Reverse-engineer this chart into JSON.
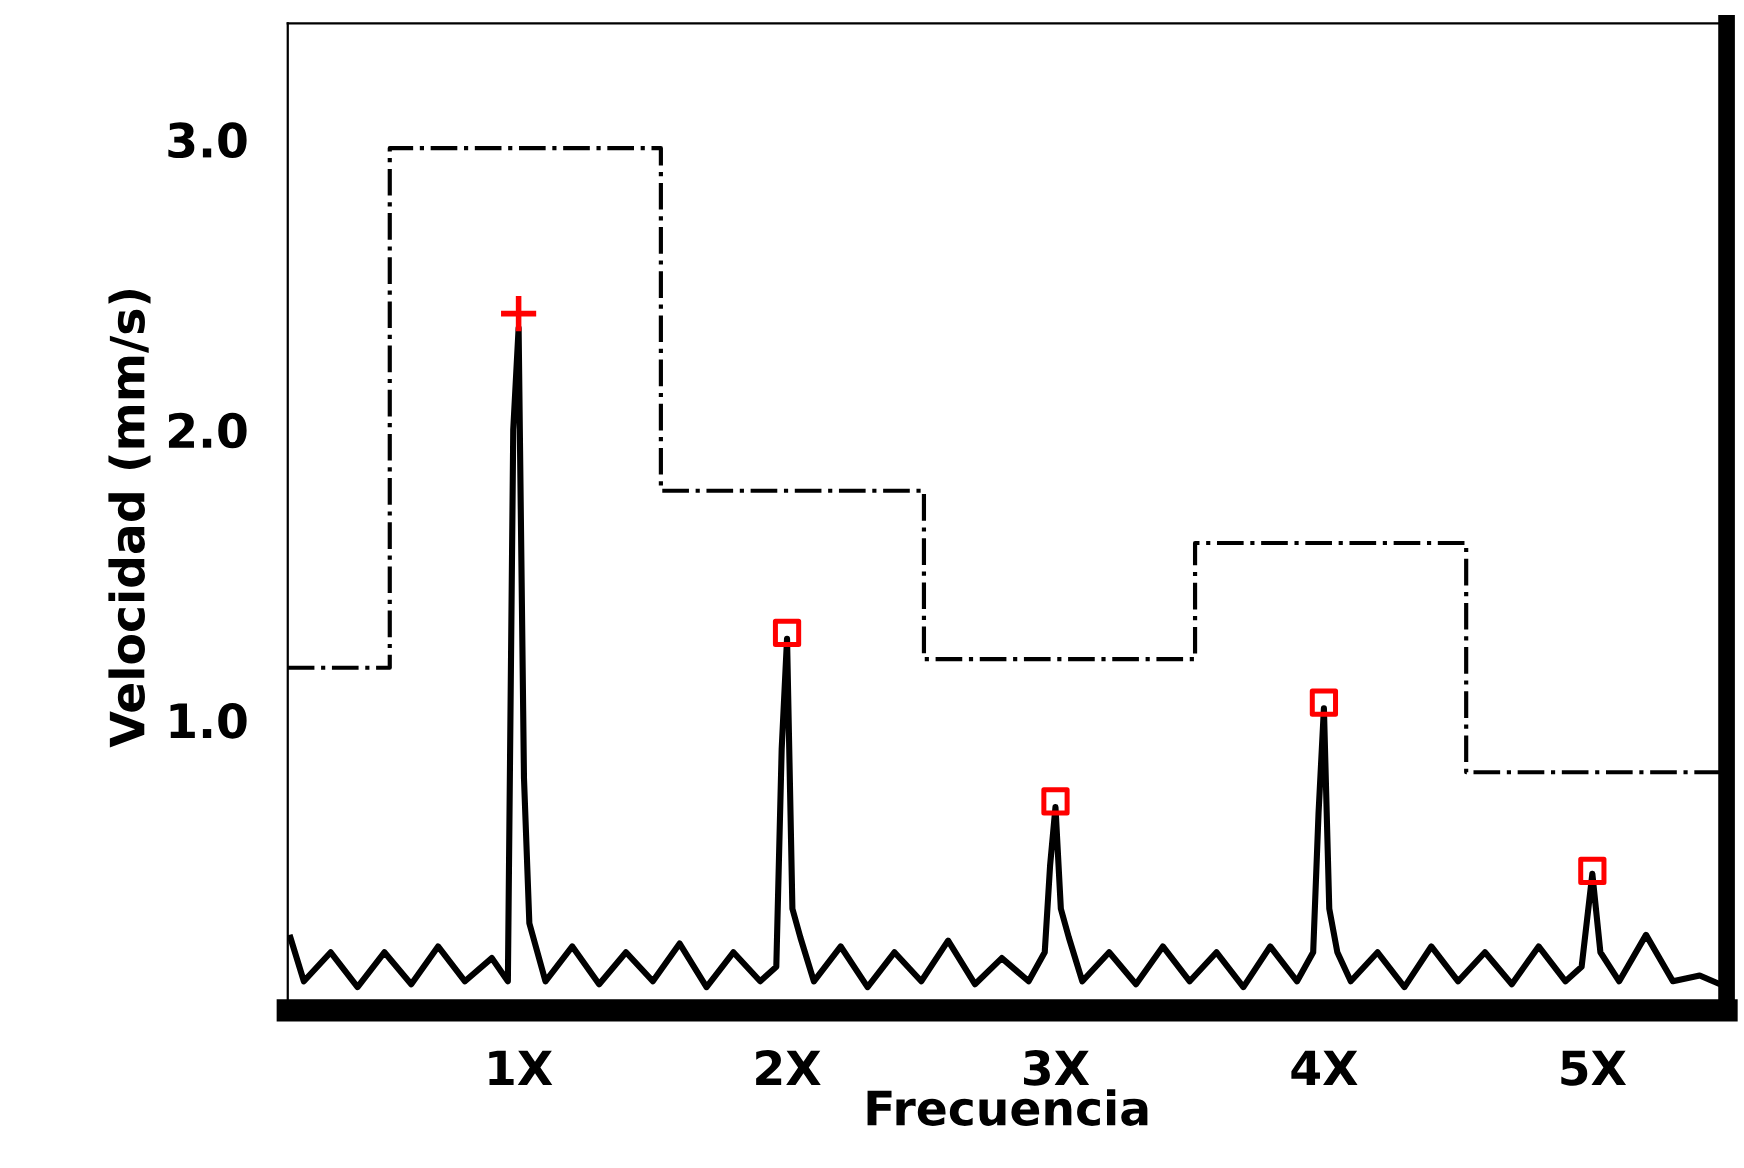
{
  "chart_data": {
    "type": "line",
    "xlabel": "Frecuencia",
    "ylabel": "Velocidad (mm/s)",
    "xlim": [
      0.14,
      5.5
    ],
    "xticks": [
      {
        "value": 1,
        "label": "1X"
      },
      {
        "value": 2,
        "label": "2X"
      },
      {
        "value": 3,
        "label": "3X"
      },
      {
        "value": 4,
        "label": "4X"
      },
      {
        "value": 5,
        "label": "5X"
      }
    ],
    "ylim": [
      0,
      3.4
    ],
    "yticks": [
      {
        "value": 1,
        "label": "1.0"
      },
      {
        "value": 2,
        "label": "2.0"
      },
      {
        "value": 3,
        "label": "3.0"
      }
    ],
    "grid": false,
    "legend": false,
    "series": [
      {
        "color": "#000000",
        "line_style": "solid",
        "marker": "none",
        "x": [
          0.15,
          0.2,
          0.3,
          0.4,
          0.5,
          0.6,
          0.7,
          0.8,
          0.9,
          0.96,
          0.98,
          1.0,
          1.02,
          1.04,
          1.1,
          1.2,
          1.3,
          1.4,
          1.5,
          1.6,
          1.7,
          1.8,
          1.9,
          1.96,
          1.98,
          2.0,
          2.02,
          2.05,
          2.1,
          2.2,
          2.3,
          2.4,
          2.5,
          2.6,
          2.7,
          2.8,
          2.9,
          2.96,
          2.98,
          3.0,
          3.02,
          3.05,
          3.1,
          3.2,
          3.3,
          3.4,
          3.5,
          3.6,
          3.7,
          3.8,
          3.9,
          3.96,
          3.98,
          4.0,
          4.02,
          4.05,
          4.1,
          4.2,
          4.3,
          4.4,
          4.5,
          4.6,
          4.7,
          4.8,
          4.9,
          4.96,
          5.0,
          5.03,
          5.1,
          5.2,
          5.3,
          5.4,
          5.5
        ],
        "values": [
          0.25,
          0.1,
          0.2,
          0.08,
          0.2,
          0.09,
          0.22,
          0.1,
          0.18,
          0.1,
          2.0,
          2.35,
          0.8,
          0.3,
          0.1,
          0.22,
          0.09,
          0.2,
          0.1,
          0.23,
          0.08,
          0.2,
          0.1,
          0.15,
          0.9,
          1.28,
          0.35,
          0.25,
          0.1,
          0.22,
          0.08,
          0.2,
          0.1,
          0.24,
          0.09,
          0.18,
          0.1,
          0.2,
          0.5,
          0.7,
          0.35,
          0.25,
          0.1,
          0.2,
          0.09,
          0.22,
          0.1,
          0.2,
          0.08,
          0.22,
          0.1,
          0.2,
          0.68,
          1.04,
          0.35,
          0.2,
          0.1,
          0.2,
          0.08,
          0.22,
          0.1,
          0.2,
          0.09,
          0.22,
          0.1,
          0.15,
          0.47,
          0.2,
          0.1,
          0.26,
          0.1,
          0.12,
          0.08
        ]
      },
      {
        "type": "step",
        "color": "#000000",
        "line_style": "dashdot",
        "marker": "none",
        "x": [
          0.14,
          0.52,
          1.53,
          2.51,
          3.52,
          4.53,
          5.5
        ],
        "values": [
          1.18,
          2.97,
          1.79,
          1.21,
          1.61,
          0.82,
          0.82
        ]
      },
      {
        "type": "scatter",
        "color": "#ff0000",
        "marker": "cross",
        "x": [
          1.0
        ],
        "values": [
          2.4
        ]
      },
      {
        "type": "scatter",
        "color": "#ff0000",
        "marker": "square",
        "x": [
          2.0,
          3.0,
          4.0,
          5.0
        ],
        "values": [
          1.3,
          0.72,
          1.06,
          0.48
        ]
      }
    ]
  }
}
